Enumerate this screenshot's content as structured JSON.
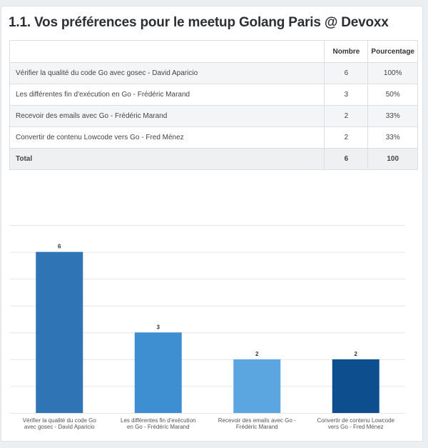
{
  "title": "1.1. Vos préférences pour le meetup Golang Paris @ Devoxx",
  "table": {
    "headers": {
      "label": "",
      "count": "Nombre",
      "percent": "Pourcentage"
    },
    "rows": [
      {
        "label": "Vérifier la qualité du code Go avec gosec - David Aparicio",
        "count": "6",
        "percent": "100%"
      },
      {
        "label": "Les différentes fin d'exécution en Go - Frédéric Marand",
        "count": "3",
        "percent": "50%"
      },
      {
        "label": "Recevoir des emails avec Go - Frédéric Marand",
        "count": "2",
        "percent": "33%"
      },
      {
        "label": "Convertir de contenu Lowcode vers Go - Fred Ménez",
        "count": "2",
        "percent": "33%"
      }
    ],
    "total": {
      "label": "Total",
      "count": "6",
      "percent": "100"
    }
  },
  "chart_data": {
    "type": "bar",
    "categories": [
      "Vérifier la qualité du code Go avec gosec - David Aparicio",
      "Les différentes fin d'exécution en Go - Frédéric Marand",
      "Recevoir des emails avec Go - Frédéric Marand",
      "Convertir de contenu Lowcode vers Go - Fred Ménez"
    ],
    "values": [
      6,
      3,
      2,
      2
    ],
    "colors": [
      "#2f75b5",
      "#3d8fd1",
      "#5ba6e0",
      "#0d4e8f"
    ],
    "title": "",
    "xlabel": "",
    "ylabel": "",
    "ylim": [
      0,
      7
    ],
    "grid": true,
    "data_labels": true
  }
}
